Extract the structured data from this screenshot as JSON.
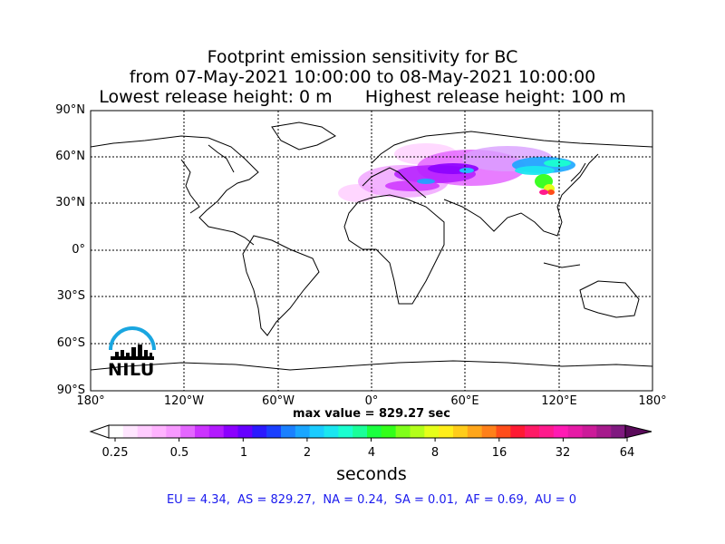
{
  "title": {
    "line1": "Footprint emission sensitivity for BC",
    "line2": "from 07-May-2021 10:00:00 to 08-May-2021 10:00:00",
    "line3": "Lowest release height: 0 m      Highest release height: 100 m"
  },
  "map": {
    "lat_labels": [
      "90°N",
      "60°N",
      "30°N",
      "0°",
      "30°S",
      "60°S",
      "90°S"
    ],
    "lon_labels": [
      "180°",
      "120°W",
      "60°W",
      "0°",
      "60°E",
      "120°E",
      "180°"
    ],
    "projection": "cylindrical",
    "gridlines": "dotted"
  },
  "logo": {
    "text": "NILU",
    "arc_color": "#1aa6e0"
  },
  "max_value": "max value = 829.27 sec",
  "colorbar": {
    "tick_labels": [
      "0.25",
      "0.5",
      "1",
      "2",
      "4",
      "8",
      "16",
      "32",
      "64"
    ],
    "unit": "seconds",
    "colors": [
      "#ffffff",
      "#ffe6ff",
      "#ffccff",
      "#ffb3ff",
      "#f799ff",
      "#e466ff",
      "#cc33ff",
      "#b31aff",
      "#8c00ff",
      "#6600ff",
      "#2b1aff",
      "#1a40ff",
      "#1a80ff",
      "#1aa6ff",
      "#1accff",
      "#1ae6f0",
      "#1affd0",
      "#1aff99",
      "#1aff40",
      "#33ff1a",
      "#80ff1a",
      "#b3ff1a",
      "#e6ff1a",
      "#ffee1a",
      "#ffcc1a",
      "#ffa61a",
      "#ff801a",
      "#ff4d1a",
      "#ff1a33",
      "#ff1a66",
      "#ff1a8c",
      "#ff1ab3",
      "#e61aa6",
      "#cc1a99",
      "#a61a8c",
      "#801a80"
    ]
  },
  "stats": "EU = 4.34,  AS = 829.27,  NA = 0.24,  SA = 0.01,  AF = 0.69,  AU = 0"
}
